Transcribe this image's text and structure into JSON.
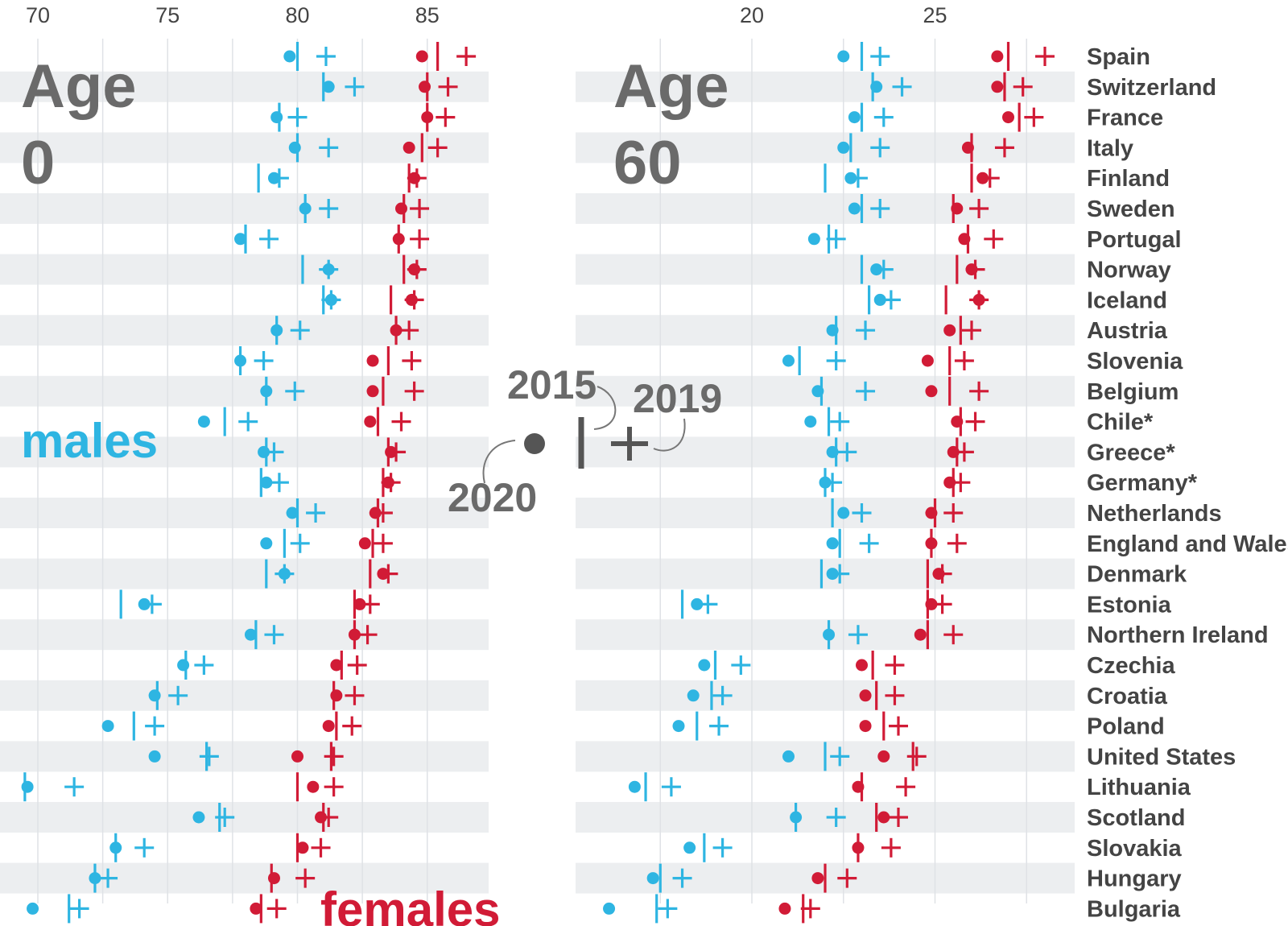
{
  "chart_data": {
    "type": "scatter",
    "colors": {
      "males": "#2eb5e2",
      "females": "#d11b36",
      "marker": "#555555",
      "band": "#eceef0",
      "grid": "#dfe2e6"
    },
    "legend": {
      "label_2015": "2015",
      "label_2019": "2019",
      "label_2020": "2020"
    },
    "series_labels": {
      "males": "males",
      "females": "females"
    },
    "countries": [
      "Spain",
      "Switzerland",
      "France",
      "Italy",
      "Finland",
      "Sweden",
      "Portugal",
      "Norway",
      "Iceland",
      "Austria",
      "Slovenia",
      "Belgium",
      "Chile*",
      "Greece*",
      "Germany*",
      "Netherlands",
      "England and Wales",
      "Denmark",
      "Estonia",
      "Northern Ireland",
      "Czechia",
      "Croatia",
      "Poland",
      "United States",
      "Lithuania",
      "Scotland",
      "Slovakia",
      "Hungary",
      "Bulgaria"
    ],
    "panels": [
      {
        "title_line1": "Age",
        "title_line2": "0",
        "xlim": [
          69.5,
          87.6
        ],
        "ticks": [
          70,
          75,
          80,
          85
        ],
        "tick_labels": [
          "70",
          "75",
          "80",
          "85"
        ],
        "males": {
          "y2015": [
            80.0,
            81.0,
            79.3,
            80.0,
            78.5,
            80.3,
            78.0,
            80.2,
            81.0,
            79.2,
            77.8,
            78.8,
            77.2,
            78.8,
            78.6,
            80.0,
            79.5,
            78.8,
            73.2,
            78.4,
            75.7,
            74.6,
            73.7,
            76.5,
            69.5,
            77.0,
            73.0,
            72.2,
            71.2
          ],
          "y2019": [
            81.1,
            82.2,
            80.0,
            81.2,
            79.3,
            81.2,
            78.9,
            81.2,
            81.3,
            80.1,
            78.7,
            79.9,
            78.1,
            79.1,
            79.3,
            80.7,
            80.1,
            79.5,
            74.4,
            79.1,
            76.4,
            75.4,
            74.5,
            76.6,
            71.4,
            77.2,
            74.1,
            72.7,
            71.6
          ],
          "y2020": [
            79.7,
            81.2,
            79.2,
            79.9,
            79.1,
            80.3,
            77.8,
            81.2,
            81.3,
            79.2,
            77.8,
            78.8,
            76.4,
            78.7,
            78.8,
            79.8,
            78.8,
            79.5,
            74.1,
            78.2,
            75.6,
            74.5,
            72.7,
            74.5,
            69.6,
            76.2,
            73.0,
            72.2,
            69.8
          ]
        },
        "females": {
          "y2015": [
            85.4,
            85.0,
            85.0,
            84.8,
            84.3,
            84.1,
            83.9,
            84.1,
            83.6,
            83.8,
            83.5,
            83.3,
            83.1,
            83.5,
            83.3,
            83.1,
            82.9,
            82.8,
            82.2,
            82.2,
            81.7,
            81.4,
            81.5,
            81.3,
            80.0,
            81.0,
            80.0,
            79.0,
            78.6
          ],
          "y2019": [
            86.5,
            85.8,
            85.7,
            85.4,
            84.6,
            84.7,
            84.7,
            84.6,
            84.5,
            84.3,
            84.4,
            84.5,
            84.0,
            83.8,
            83.6,
            83.3,
            83.3,
            83.5,
            82.8,
            82.7,
            82.3,
            82.2,
            82.1,
            81.4,
            81.4,
            81.2,
            80.9,
            80.3,
            79.2
          ],
          "y2020": [
            84.8,
            84.9,
            85.0,
            84.3,
            84.5,
            84.0,
            83.9,
            84.5,
            84.4,
            83.8,
            82.9,
            82.9,
            82.8,
            83.6,
            83.5,
            83.0,
            82.6,
            83.3,
            82.4,
            82.2,
            81.5,
            81.5,
            81.2,
            80.0,
            80.6,
            80.9,
            80.2,
            79.1,
            78.4
          ]
        }
      },
      {
        "title_line1": "Age",
        "title_line2": "60",
        "xlim": [
          15.5,
          29.0
        ],
        "ticks": [
          20,
          25
        ],
        "tick_labels": [
          "20",
          "25"
        ],
        "males": {
          "y2015": [
            23.0,
            23.3,
            23.0,
            22.7,
            22.0,
            23.0,
            22.1,
            23.0,
            23.2,
            22.3,
            21.3,
            21.9,
            22.1,
            22.3,
            22.0,
            22.2,
            22.4,
            21.9,
            18.1,
            22.1,
            19.0,
            18.9,
            18.5,
            22.0,
            17.1,
            21.2,
            18.7,
            17.5,
            17.4
          ],
          "y2019": [
            23.5,
            24.1,
            23.6,
            23.5,
            22.9,
            23.5,
            22.3,
            23.6,
            23.8,
            23.1,
            22.3,
            23.1,
            22.4,
            22.6,
            22.2,
            23.0,
            23.2,
            22.4,
            18.8,
            22.9,
            19.7,
            19.2,
            19.1,
            22.4,
            17.8,
            22.3,
            19.2,
            18.1,
            17.7
          ],
          "y2020": [
            22.5,
            23.4,
            22.8,
            22.5,
            22.7,
            22.8,
            21.7,
            23.4,
            23.5,
            22.2,
            21.0,
            21.8,
            21.6,
            22.2,
            22.0,
            22.5,
            22.2,
            22.2,
            18.5,
            22.1,
            18.7,
            18.4,
            18.0,
            21.0,
            16.8,
            21.2,
            18.3,
            17.3,
            16.1
          ]
        },
        "females": {
          "y2015": [
            27.0,
            26.9,
            27.3,
            26.0,
            26.0,
            25.5,
            25.9,
            25.6,
            25.3,
            25.7,
            25.4,
            25.4,
            25.7,
            25.6,
            25.5,
            25.0,
            24.9,
            24.8,
            24.8,
            24.8,
            23.3,
            23.4,
            23.6,
            24.4,
            23.0,
            23.4,
            22.9,
            22.0,
            21.4
          ],
          "y2019": [
            28.0,
            27.4,
            27.7,
            26.9,
            26.5,
            26.2,
            26.6,
            26.1,
            26.2,
            26.0,
            25.8,
            26.2,
            26.1,
            25.8,
            25.7,
            25.5,
            25.6,
            25.2,
            25.2,
            25.5,
            23.9,
            23.9,
            24.0,
            24.5,
            24.2,
            24.0,
            23.8,
            22.6,
            21.6
          ],
          "y2020": [
            26.7,
            26.7,
            27.0,
            25.9,
            26.3,
            25.6,
            25.8,
            26.0,
            26.2,
            25.4,
            24.8,
            24.9,
            25.6,
            25.5,
            25.4,
            24.9,
            24.9,
            25.1,
            24.9,
            24.6,
            23.0,
            23.1,
            23.1,
            23.6,
            22.9,
            23.6,
            22.9,
            21.8,
            20.9
          ]
        }
      }
    ]
  }
}
